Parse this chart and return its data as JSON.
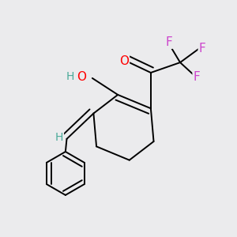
{
  "background_color": "#ebebed",
  "atom_colors": {
    "O": "#ff0000",
    "F": "#cc44cc",
    "H": "#4aaa99"
  },
  "font_size_heavy": 11,
  "font_size_H": 10,
  "line_width": 1.4
}
